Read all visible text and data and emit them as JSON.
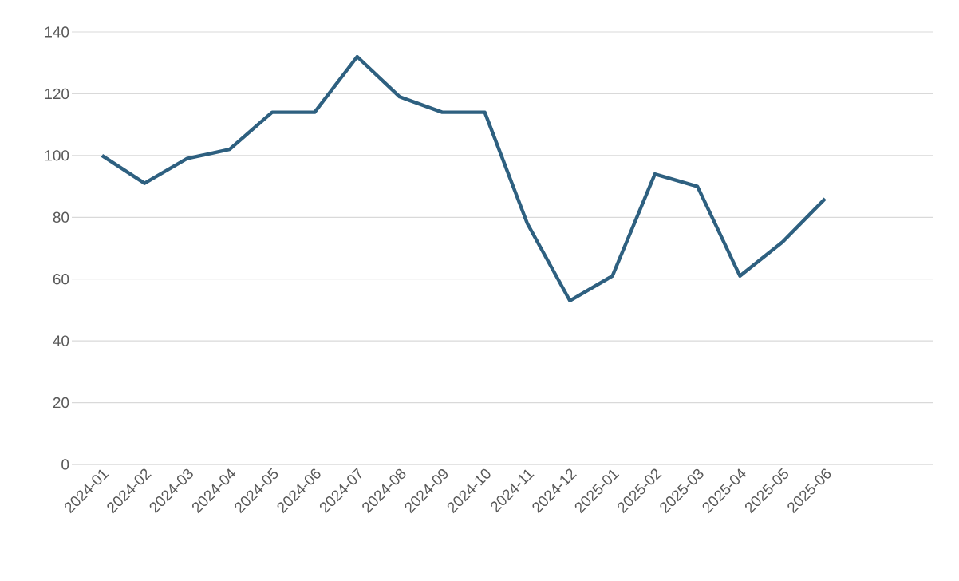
{
  "chart_data": {
    "type": "line",
    "categories": [
      "2024-01",
      "2024-02",
      "2024-03",
      "2024-04",
      "2024-05",
      "2024-06",
      "2024-07",
      "2024-08",
      "2024-09",
      "2024-10",
      "2024-11",
      "2024-12",
      "2025-01",
      "2025-02",
      "2025-03",
      "2025-04",
      "2025-05",
      "2025-06"
    ],
    "series": [
      {
        "color": "#2e6080",
        "values": [
          100,
          91,
          99,
          102,
          114,
          114,
          132,
          119,
          114,
          114,
          78,
          53,
          61,
          94,
          90,
          61,
          72,
          86
        ]
      }
    ],
    "ylim": [
      0,
      140
    ],
    "yticks": [
      0,
      20,
      40,
      60,
      80,
      100,
      120,
      140
    ],
    "grid": "y",
    "marker": "none",
    "line_style": "solid"
  }
}
